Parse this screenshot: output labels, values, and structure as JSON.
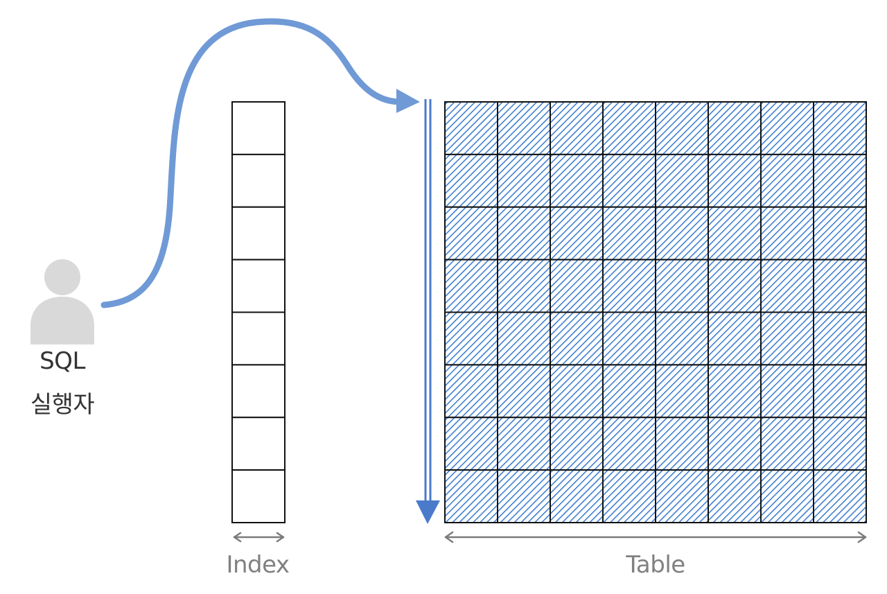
{
  "actor": {
    "label_line1": "SQL",
    "label_line2": "실행자",
    "icon": "person-icon",
    "color": "#d9d9d9"
  },
  "index": {
    "label": "Index",
    "rows": 8
  },
  "table": {
    "label": "Table",
    "rows": 8,
    "columns": 8,
    "fill": "hatched-blue"
  },
  "colors": {
    "accent": "#6f9ad6",
    "scan_arrow": "#4a7bcb",
    "grid_line": "#111111",
    "dimension_arrow": "#7a7a7a",
    "hatch": "#3f7fd0"
  }
}
